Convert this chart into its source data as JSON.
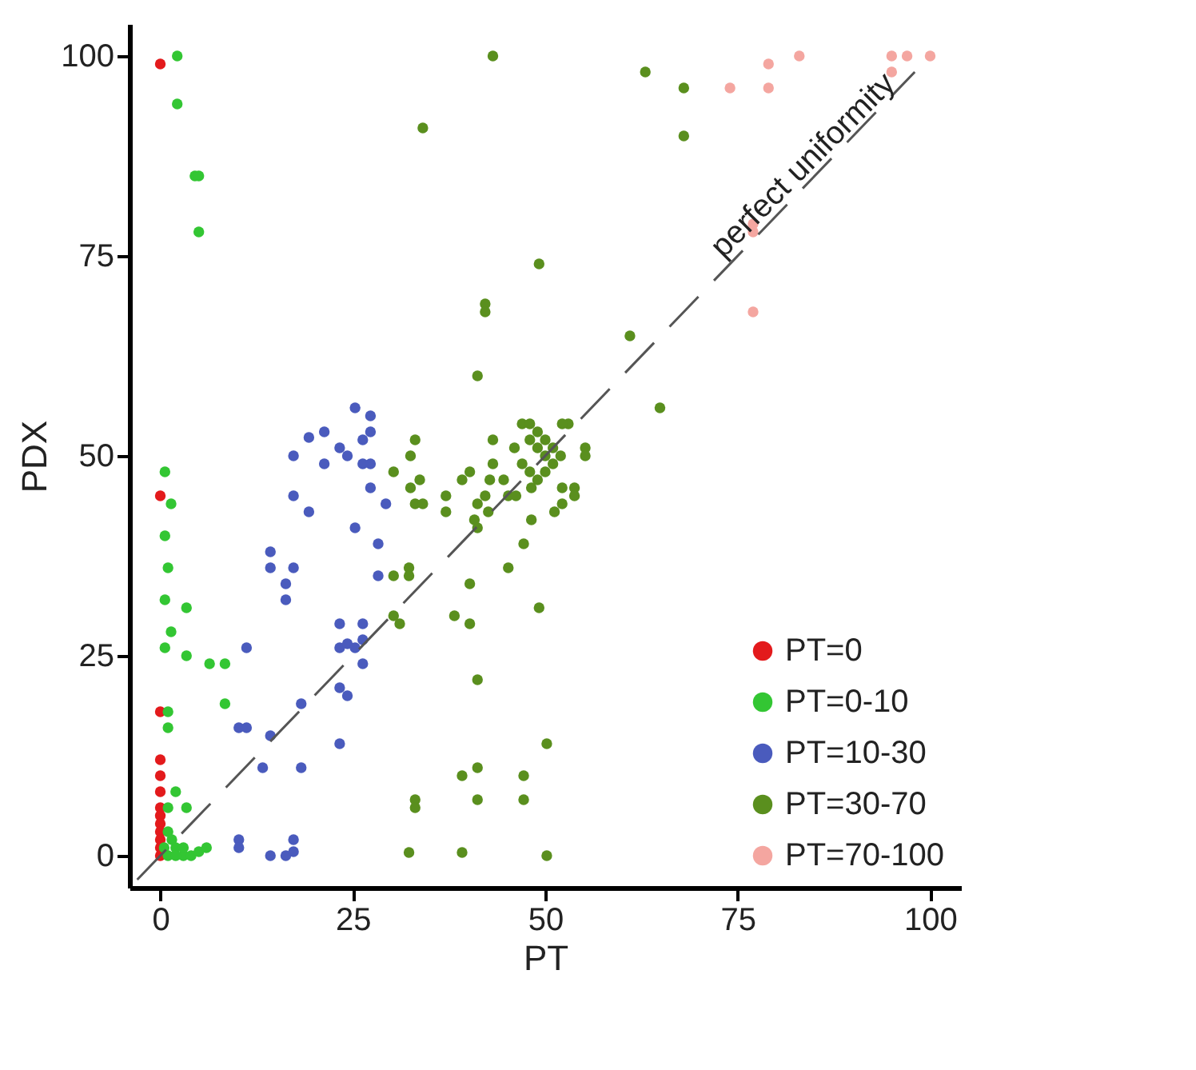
{
  "chart_data": {
    "type": "scatter",
    "xlabel": "PT",
    "ylabel": "PDX",
    "xlim": [
      -4,
      104
    ],
    "ylim": [
      -4,
      104
    ],
    "xticks": [
      0,
      25,
      50,
      75,
      100
    ],
    "yticks": [
      0,
      25,
      50,
      75,
      100
    ],
    "grid": false,
    "legend": "bottom right",
    "marker": "circle",
    "series": [
      {
        "name": "PT=0",
        "color": "#e31a1c",
        "x": [
          0,
          0,
          0,
          0,
          0,
          0,
          0,
          0,
          0,
          0,
          0,
          0,
          0
        ],
        "values": [
          99,
          45,
          18,
          12,
          10,
          8,
          6,
          5,
          4,
          3,
          2,
          1,
          0
        ]
      },
      {
        "name": "PT=0-10",
        "color": "#33c633",
        "x": [
          2.2,
          2.2,
          4.5,
          5,
          5,
          0.6,
          1.4,
          0.6,
          1,
          0.6,
          3.4,
          1.4,
          0.6,
          3.4,
          6.4,
          8.4,
          8.4,
          1,
          1,
          2,
          3.4,
          1,
          1,
          1.5,
          2,
          3,
          4,
          5,
          6,
          1,
          2,
          3,
          0.5
        ],
        "values": [
          100,
          94,
          85,
          85,
          78,
          48,
          44,
          40,
          36,
          32,
          31,
          28,
          26,
          25,
          24,
          24,
          19,
          18,
          16,
          8,
          6,
          6,
          3,
          2,
          1,
          0,
          0,
          0.5,
          1,
          0,
          0,
          1,
          1
        ]
      },
      {
        "name": "PT=10-30",
        "color": "#4a5bbd",
        "x": [
          25.3,
          27.3,
          19.3,
          21.3,
          17.3,
          21.3,
          23.3,
          24.3,
          26.3,
          27.3,
          26.3,
          27.3,
          27.3,
          29.3,
          17.3,
          19.3,
          25.3,
          28.3,
          28.3,
          14.3,
          14.3,
          17.3,
          16.3,
          16.3,
          11.2,
          23.3,
          26.3,
          26.3,
          23.3,
          24.3,
          25.3,
          26.3,
          23.3,
          24.3,
          18.3,
          10.2,
          11.2,
          14.3,
          13.3,
          18.3,
          23.3,
          10.2,
          10.2,
          14.3,
          16.3,
          17.3,
          17.3
        ],
        "values": [
          56,
          55,
          52.3,
          53,
          50,
          49,
          51,
          50,
          52,
          53,
          49,
          49,
          46,
          44,
          45,
          43,
          41,
          39,
          35,
          38,
          36,
          36,
          34,
          32,
          26,
          29,
          29,
          27,
          26,
          26.5,
          26,
          24,
          21,
          20,
          19,
          16,
          16,
          15,
          11,
          11,
          14,
          2,
          1,
          0,
          0,
          2,
          0.5
        ]
      },
      {
        "name": "PT=30-70",
        "color": "#5a8f1e",
        "x": [
          33.1,
          32.5,
          30.3,
          32.5,
          33.7,
          33.1,
          34.1,
          37.1,
          37.1,
          39.2,
          40.2,
          43.2,
          41.2,
          42.2,
          42.6,
          40.8,
          41.2,
          43.2,
          42.8,
          44.6,
          45.2,
          46.2,
          46,
          47,
          48,
          48,
          49,
          49,
          50,
          50,
          51,
          51,
          52,
          47,
          48,
          53,
          49,
          50,
          52.2,
          55.2,
          55.2,
          52.2,
          53.8,
          53.8,
          48.2,
          51.2,
          52.2,
          48.2,
          47.2,
          45.2,
          40.2,
          38.2,
          40.2,
          49.2,
          30.3,
          32.3,
          32.3,
          30.3,
          31.1,
          41.2,
          50.2,
          39.2,
          41.2,
          41.2,
          47.2,
          47.2,
          33.1,
          33.1,
          32.3,
          39.2,
          50.2,
          43.2,
          34.1,
          63,
          68,
          68,
          49.2,
          42.2,
          42.2,
          61,
          41.2,
          64.9
        ],
        "values": [
          52,
          50,
          48,
          46,
          47,
          44,
          44,
          45,
          43,
          47,
          48,
          52,
          44,
          45,
          43,
          42,
          41,
          49,
          47,
          47,
          45,
          45,
          51,
          54,
          54,
          52,
          53,
          51,
          52,
          50,
          51,
          49,
          50,
          49,
          48,
          54,
          47,
          48,
          54,
          51,
          50,
          46,
          46,
          45,
          46,
          43,
          44,
          42,
          39,
          36,
          34,
          30,
          29,
          31,
          35,
          36,
          35,
          30,
          29,
          22,
          14,
          10,
          11,
          7,
          10,
          7,
          7,
          6,
          0.4,
          0.4,
          0,
          100,
          91,
          98,
          96,
          90,
          74,
          69,
          68,
          65,
          60,
          56
        ]
      },
      {
        "name": "PT=70-100",
        "color": "#f4a6a0",
        "x": [
          74,
          79,
          79,
          83,
          95,
          97,
          100,
          95,
          77,
          77,
          77
        ],
        "values": [
          96,
          99,
          96,
          100,
          100,
          100,
          100,
          98,
          79,
          78,
          68
        ]
      },
      {
        "name": "perfect uniformity",
        "type": "line",
        "line_style": "dashed",
        "marker": "none",
        "color": "#555555",
        "x": [
          -3,
          98
        ],
        "values": [
          -3,
          98
        ]
      }
    ]
  }
}
